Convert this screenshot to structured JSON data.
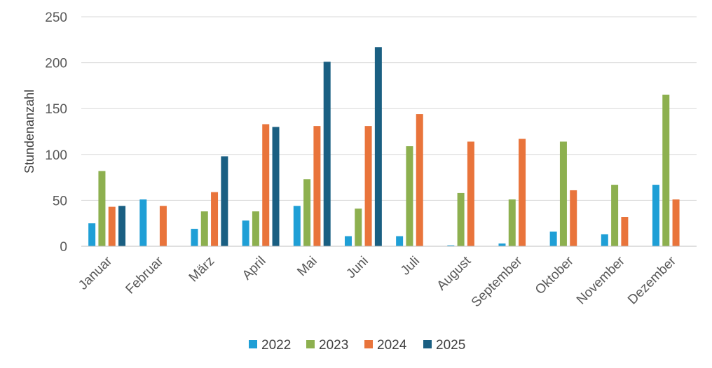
{
  "chart_data": {
    "type": "bar",
    "categories": [
      "Januar",
      "Februar",
      "März",
      "April",
      "Mai",
      "Juni",
      "Juli",
      "August",
      "September",
      "Oktober",
      "November",
      "Dezember"
    ],
    "series": [
      {
        "name": "2022",
        "color": "#1f9fd6",
        "values": [
          25,
          51,
          19,
          28,
          44,
          11,
          11,
          1,
          3,
          16,
          13,
          67
        ]
      },
      {
        "name": "2023",
        "color": "#8db04f",
        "values": [
          82,
          null,
          38,
          38,
          73,
          41,
          109,
          58,
          51,
          114,
          67,
          165
        ]
      },
      {
        "name": "2024",
        "color": "#e9743b",
        "values": [
          43,
          44,
          59,
          133,
          131,
          131,
          144,
          114,
          117,
          61,
          32,
          51
        ]
      },
      {
        "name": "2025",
        "color": "#1a5f82",
        "values": [
          44,
          null,
          98,
          130,
          201,
          217,
          null,
          null,
          null,
          null,
          null,
          null
        ]
      }
    ],
    "title": "",
    "xlabel": "",
    "ylabel": "Stundenanzahl",
    "ylim": [
      0,
      250
    ],
    "yticks": [
      "0",
      "50",
      "100",
      "150",
      "200",
      "250"
    ],
    "grid": true,
    "legend_position": "bottom"
  }
}
